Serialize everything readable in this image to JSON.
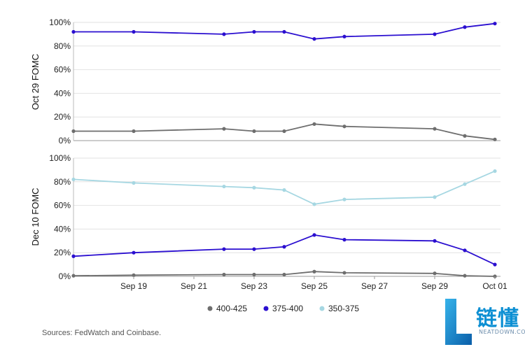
{
  "chart_data": [
    {
      "type": "line",
      "panel_label": "Oct 29 FOMC",
      "ylim": [
        0,
        100
      ],
      "yticks": [
        0,
        20,
        40,
        60,
        80,
        100
      ],
      "ytick_labels": [
        "0%",
        "20%",
        "40%",
        "60%",
        "80%",
        "100%"
      ],
      "x": [
        "2025-09-17",
        "2025-09-19",
        "2025-09-22",
        "2025-09-23",
        "2025-09-24",
        "2025-09-25",
        "2025-09-26",
        "2025-09-29",
        "2025-09-30",
        "2025-10-01"
      ],
      "series": [
        {
          "name": "400-425",
          "color": "#6e6e6e",
          "values": [
            8,
            8,
            10,
            8,
            8,
            14,
            12,
            10,
            4,
            1
          ]
        },
        {
          "name": "375-400",
          "color": "#2b0fd0",
          "values": [
            92,
            92,
            90,
            92,
            92,
            86,
            88,
            90,
            96,
            99
          ]
        }
      ],
      "grid": true
    },
    {
      "type": "line",
      "panel_label": "Dec 10 FOMC",
      "ylim": [
        0,
        100
      ],
      "yticks": [
        0,
        20,
        40,
        60,
        80,
        100
      ],
      "ytick_labels": [
        "0%",
        "20%",
        "40%",
        "60%",
        "80%",
        "100%"
      ],
      "x": [
        "2025-09-17",
        "2025-09-19",
        "2025-09-22",
        "2025-09-23",
        "2025-09-24",
        "2025-09-25",
        "2025-09-26",
        "2025-09-29",
        "2025-09-30",
        "2025-10-01"
      ],
      "series": [
        {
          "name": "400-425",
          "color": "#6e6e6e",
          "values": [
            0.5,
            1,
            1.5,
            1.5,
            1.5,
            4,
            3,
            2.5,
            0.5,
            0
          ]
        },
        {
          "name": "375-400",
          "color": "#2b0fd0",
          "values": [
            17,
            20,
            23,
            23,
            25,
            35,
            31,
            30,
            22,
            10
          ]
        },
        {
          "name": "350-375",
          "color": "#a6d7e2",
          "values": [
            82,
            79,
            76,
            75,
            73,
            61,
            65,
            67,
            78,
            89
          ]
        }
      ],
      "grid": true
    }
  ],
  "xaxis": {
    "ticks": [
      "2025-09-19",
      "2025-09-21",
      "2025-09-23",
      "2025-09-25",
      "2025-09-27",
      "2025-09-29",
      "2025-10-01"
    ],
    "tick_labels": [
      "Sep 19",
      "Sep 21",
      "Sep 23",
      "Sep 25",
      "Sep 27",
      "Sep 29",
      "Oct 01"
    ]
  },
  "legend": {
    "placement": "bottom",
    "items": [
      {
        "label": "400-425",
        "color": "#6e6e6e"
      },
      {
        "label": "375-400",
        "color": "#2b0fd0"
      },
      {
        "label": "350-375",
        "color": "#a6d7e2"
      }
    ]
  },
  "source_text": "Sources: FedWatch and Coinbase.",
  "logo": {
    "cn": "链懂",
    "en": "NEATDOWN.COM"
  }
}
